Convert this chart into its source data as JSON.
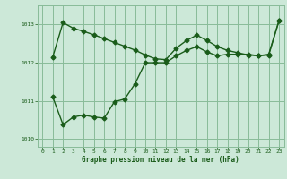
{
  "xlabel": "Graphe pression niveau de la mer (hPa)",
  "bg_color": "#cce8d8",
  "grid_color": "#88bb99",
  "line_color": "#1a5c1a",
  "ylim": [
    1009.8,
    1013.5
  ],
  "xlim": [
    -0.5,
    23.5
  ],
  "yticks": [
    1010,
    1011,
    1012,
    1013
  ],
  "xticks": [
    0,
    1,
    2,
    3,
    4,
    5,
    6,
    7,
    8,
    9,
    10,
    11,
    12,
    13,
    14,
    15,
    16,
    17,
    18,
    19,
    20,
    21,
    22,
    23
  ],
  "series1_x": [
    1,
    2,
    3,
    4,
    5,
    6,
    7,
    8,
    9,
    10,
    11,
    12,
    13,
    14,
    15,
    16,
    17,
    18,
    19,
    20,
    21,
    22,
    23
  ],
  "series1_y": [
    1012.15,
    1013.05,
    1012.9,
    1012.82,
    1012.73,
    1012.63,
    1012.53,
    1012.43,
    1012.33,
    1012.2,
    1012.1,
    1012.08,
    1012.38,
    1012.58,
    1012.72,
    1012.58,
    1012.42,
    1012.32,
    1012.26,
    1012.2,
    1012.18,
    1012.2,
    1013.1
  ],
  "series2_x": [
    1,
    2,
    3,
    4,
    5,
    6,
    7,
    8,
    9,
    10,
    11,
    12,
    13,
    14,
    15,
    16,
    17,
    18,
    19,
    20,
    21,
    22,
    23
  ],
  "series2_y": [
    1011.1,
    1010.38,
    1010.58,
    1010.63,
    1010.58,
    1010.55,
    1010.98,
    1011.05,
    1011.45,
    1012.0,
    1012.0,
    1012.0,
    1012.18,
    1012.32,
    1012.42,
    1012.28,
    1012.18,
    1012.22,
    1012.22,
    1012.22,
    1012.18,
    1012.22,
    1013.1
  ],
  "marker_size": 2.5,
  "line_width": 1.0
}
